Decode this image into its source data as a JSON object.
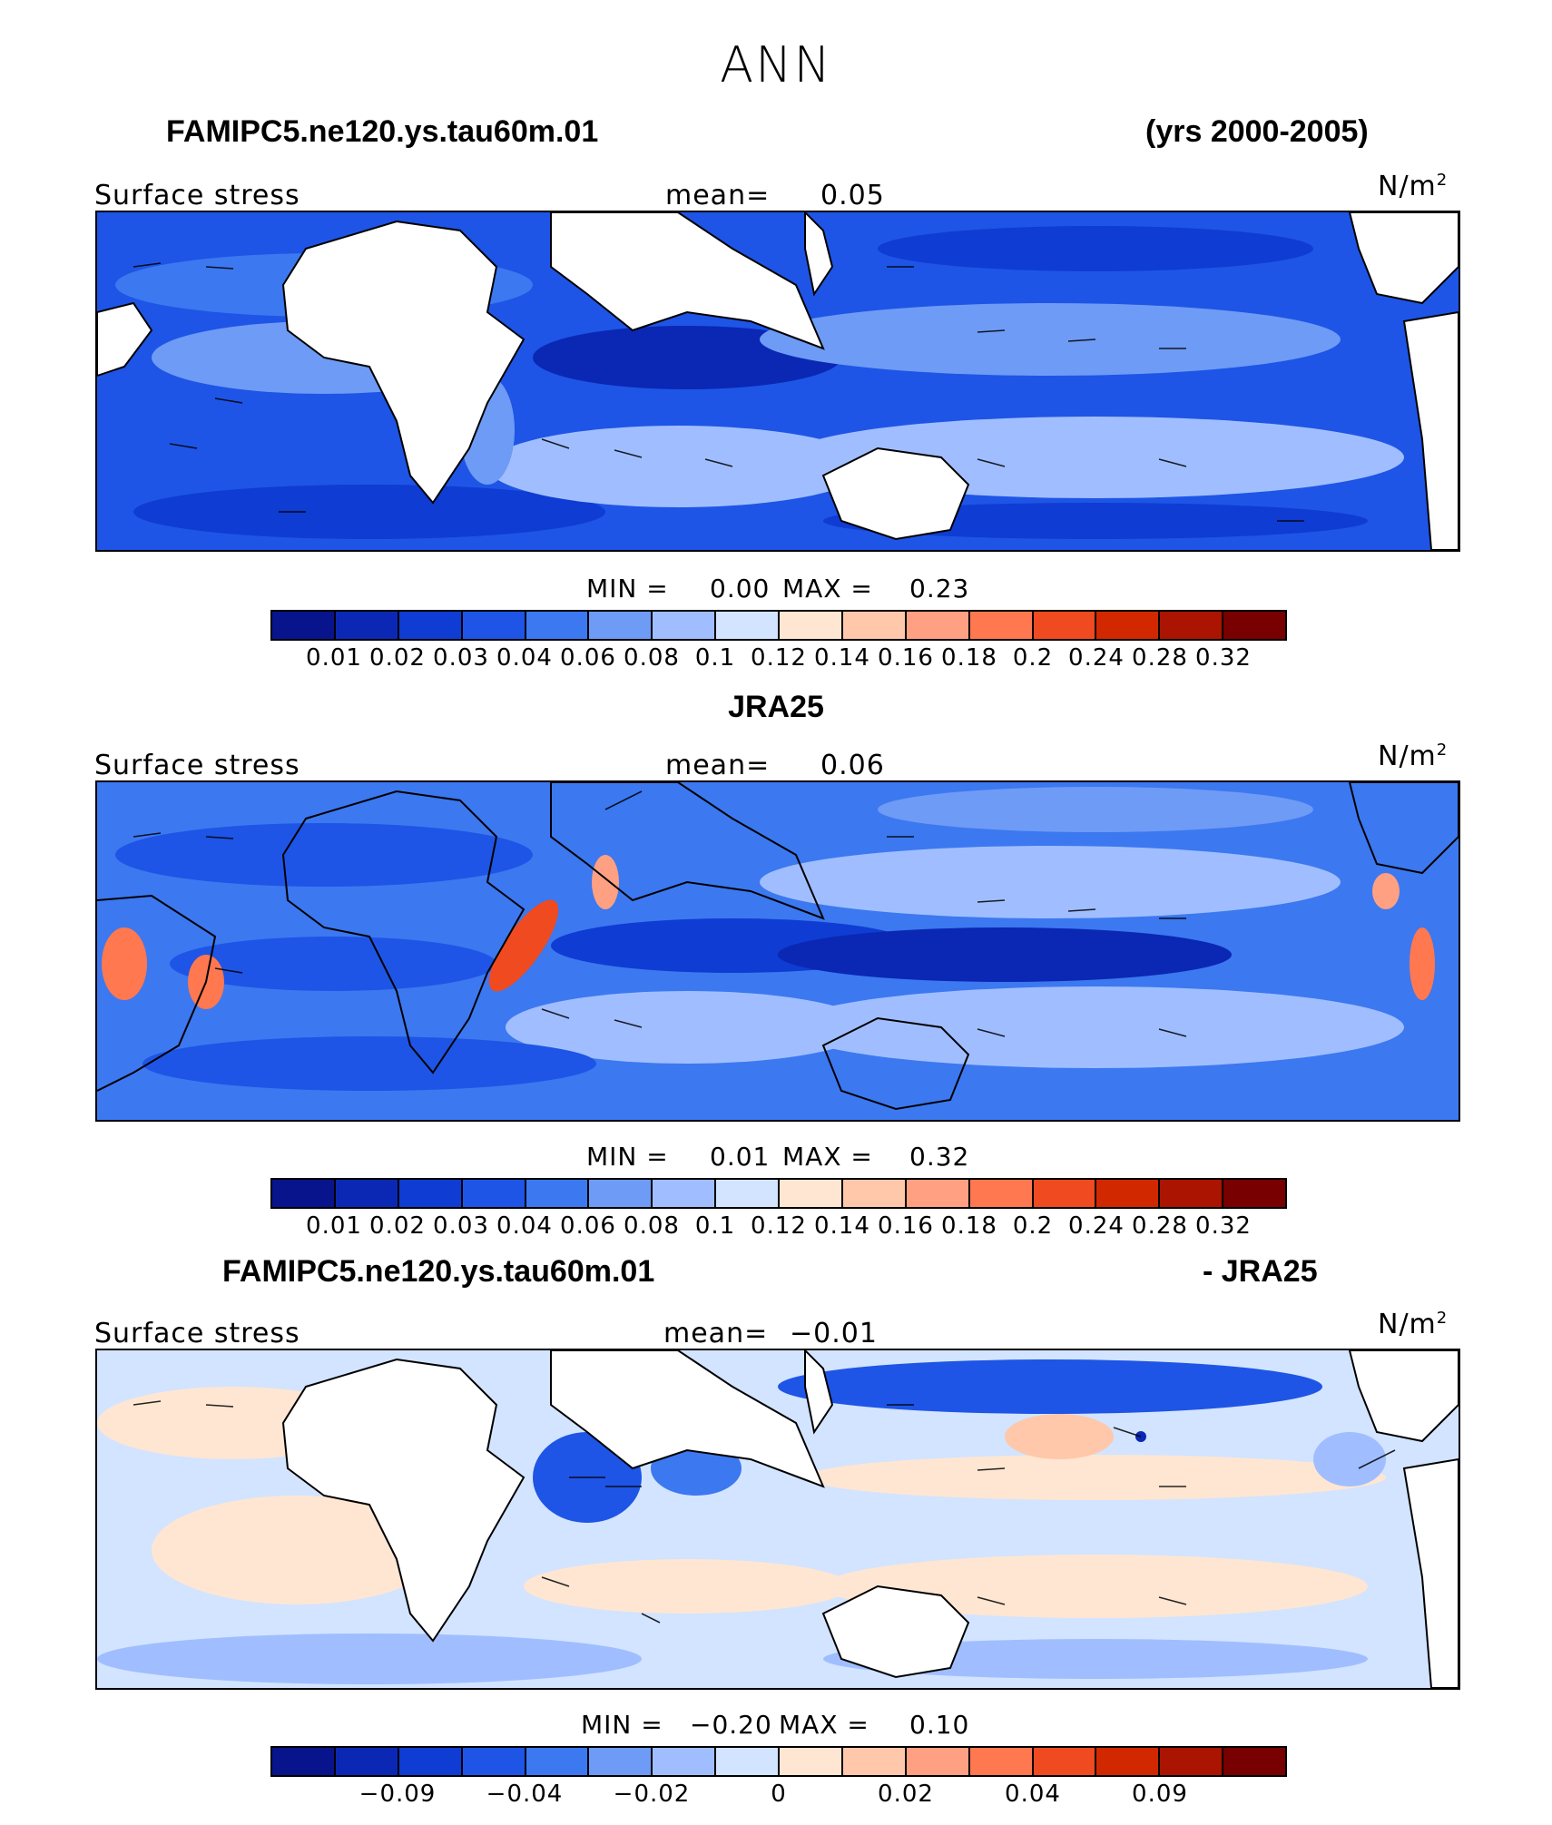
{
  "title": "ANN",
  "colors": [
    "#08148c",
    "#0a28b4",
    "#0f3cd2",
    "#1e55e6",
    "#3c78f0",
    "#6e9bf5",
    "#a0beff",
    "#d2e4ff",
    "#ffe6d2",
    "#ffc8aa",
    "#ffa082",
    "#ff7850",
    "#f04a20",
    "#d22800",
    "#aa1400",
    "#780000"
  ],
  "panels": [
    {
      "case_left": "FAMIPC5.ne120.ys.tau60m.01",
      "case_right": "(yrs 2000-2005)",
      "variable": "Surface stress",
      "mean_label": "mean=",
      "mean_value": "0.05",
      "units": "N/m",
      "units_sup": "2",
      "min_label": "MIN =",
      "min_value": "0.00",
      "max_label": "MAX =",
      "max_value": "0.23",
      "ticks": [
        "0.01",
        "0.02",
        "0.03",
        "0.04",
        "0.06",
        "0.08",
        "0.1",
        "0.12",
        "0.14",
        "0.16",
        "0.18",
        "0.2",
        "0.24",
        "0.28",
        "0.32"
      ]
    },
    {
      "case_left": "",
      "case_center": "JRA25",
      "case_right": "",
      "variable": "Surface stress",
      "mean_label": "mean=",
      "mean_value": "0.06",
      "units": "N/m",
      "units_sup": "2",
      "min_label": "MIN =",
      "min_value": "0.01",
      "max_label": "MAX =",
      "max_value": "0.32",
      "ticks": [
        "0.01",
        "0.02",
        "0.03",
        "0.04",
        "0.06",
        "0.08",
        "0.1",
        "0.12",
        "0.14",
        "0.16",
        "0.18",
        "0.2",
        "0.24",
        "0.28",
        "0.32"
      ]
    },
    {
      "case_left": "FAMIPC5.ne120.ys.tau60m.01",
      "case_right": "- JRA25",
      "variable": "Surface stress",
      "mean_label": "mean=",
      "mean_value": "−0.01",
      "units": "N/m",
      "units_sup": "2",
      "min_label": "MIN =",
      "min_value": "−0.20",
      "max_label": "MAX =",
      "max_value": "0.10",
      "ticks": [
        "−0.09",
        "−0.04",
        "−0.02",
        "0",
        "0.02",
        "0.04",
        "0.09"
      ]
    }
  ]
}
